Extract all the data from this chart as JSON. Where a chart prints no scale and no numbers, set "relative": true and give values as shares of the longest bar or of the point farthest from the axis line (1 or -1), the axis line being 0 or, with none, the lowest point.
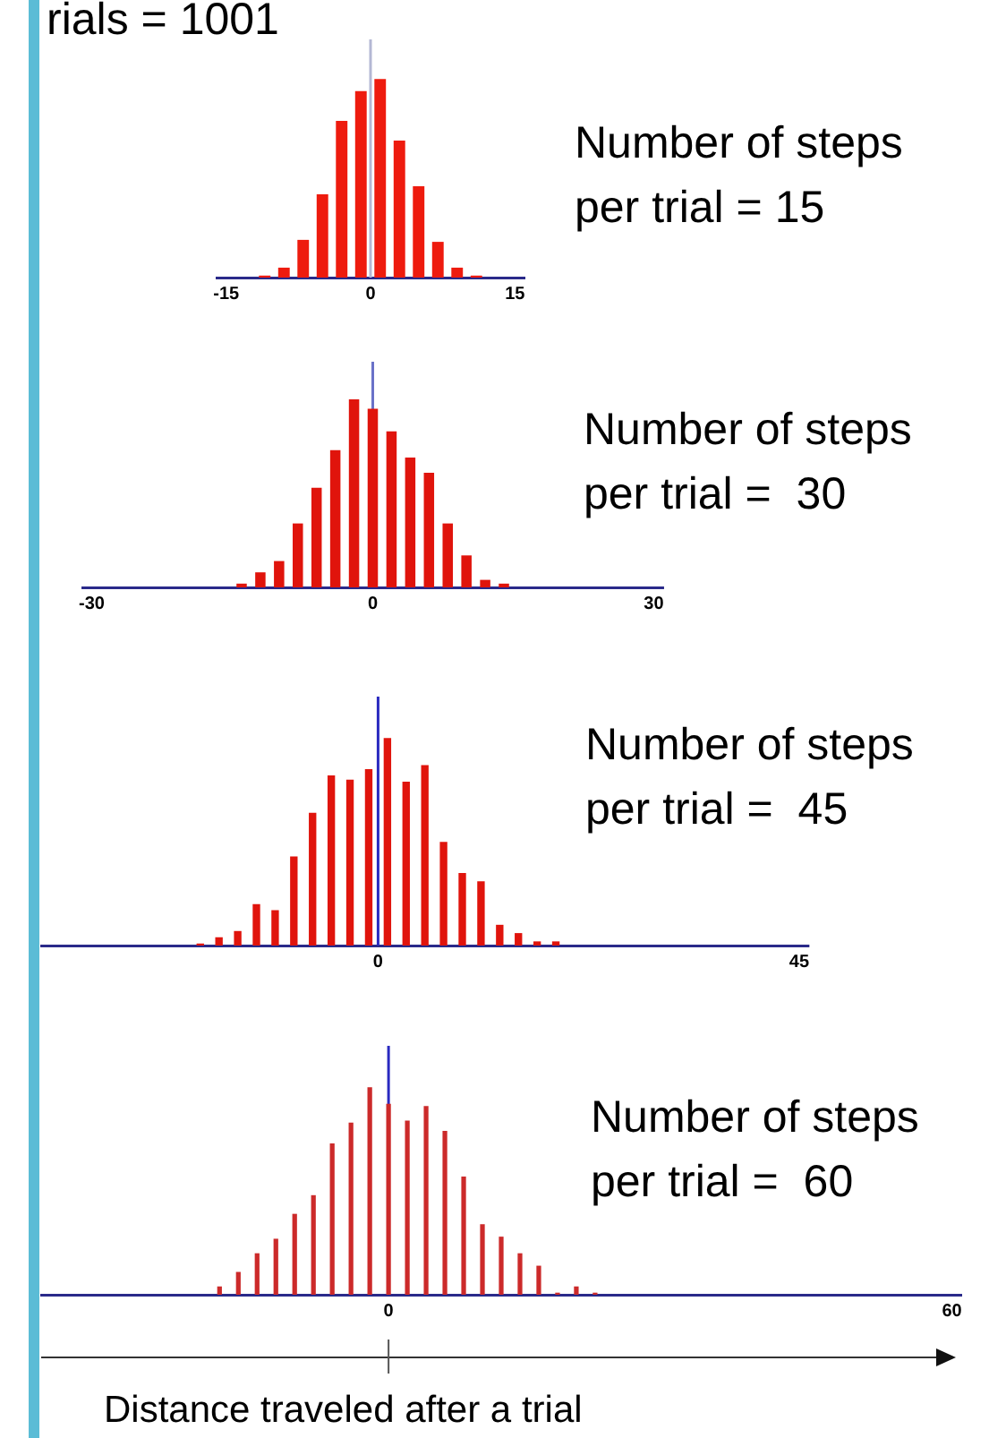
{
  "chart_data": [
    {
      "type": "bar",
      "title": "rials = 1001",
      "relative": true,
      "color": "#ee1b0e",
      "xlim": [
        -16,
        16
      ],
      "xticks": [
        -15,
        0,
        15
      ],
      "x": [
        -11,
        -9,
        -7,
        -5,
        -3,
        -1,
        1,
        3,
        5,
        7,
        9,
        11
      ],
      "values": [
        0.01,
        0.05,
        0.19,
        0.42,
        0.79,
        0.94,
        1,
        0.69,
        0.46,
        0.18,
        0.05,
        0.01
      ],
      "ref_lines": [
        {
          "axis": "x",
          "value": 0,
          "color": "#b4b8d4"
        }
      ],
      "annotations": [
        "Number of steps per trial = 15"
      ]
    },
    {
      "type": "bar",
      "relative": true,
      "color": "#e0140c",
      "xlim": [
        -31,
        31
      ],
      "xticks": [
        -30,
        0,
        30
      ],
      "x": [
        -14,
        -12,
        -10,
        -8,
        -6,
        -4,
        -2,
        0,
        2,
        4,
        6,
        8,
        10,
        12,
        14
      ],
      "values": [
        0.02,
        0.08,
        0.14,
        0.34,
        0.53,
        0.73,
        1,
        0.95,
        0.83,
        0.69,
        0.61,
        0.34,
        0.17,
        0.04,
        0.02
      ],
      "ref_lines": [
        {
          "axis": "x",
          "value": 0,
          "color": "#6a72c8"
        }
      ],
      "annotations": [
        "Number of steps per trial =  30"
      ]
    },
    {
      "type": "bar",
      "relative": true,
      "color": "#e0140c",
      "xlim": [
        -36,
        46
      ],
      "xticks": [
        0,
        45
      ],
      "x": [
        -19,
        -17,
        -15,
        -13,
        -11,
        -9,
        -7,
        -5,
        -3,
        -1,
        1,
        3,
        5,
        7,
        9,
        11,
        13,
        15,
        17,
        19
      ],
      "values": [
        0.01,
        0.04,
        0.07,
        0.2,
        0.17,
        0.43,
        0.64,
        0.82,
        0.8,
        0.85,
        1,
        0.79,
        0.87,
        0.5,
        0.35,
        0.31,
        0.1,
        0.06,
        0.02,
        0.02
      ],
      "ref_lines": [
        {
          "axis": "x",
          "value": 0,
          "color": "#2a2ac0"
        }
      ],
      "annotations": [
        "Number of steps per trial =  45"
      ]
    },
    {
      "type": "bar",
      "relative": true,
      "color": "#cc2a2a",
      "xlim": [
        -37,
        61
      ],
      "xticks": [
        0,
        60
      ],
      "x": [
        -18,
        -16,
        -14,
        -12,
        -10,
        -8,
        -6,
        -4,
        -2,
        0,
        2,
        4,
        6,
        8,
        10,
        12,
        14,
        16,
        18,
        20,
        22
      ],
      "values": [
        0.04,
        0.11,
        0.2,
        0.27,
        0.39,
        0.48,
        0.73,
        0.83,
        1,
        0.92,
        0.84,
        0.91,
        0.79,
        0.57,
        0.34,
        0.28,
        0.2,
        0.14,
        0.01,
        0.04,
        0.01
      ],
      "ref_lines": [
        {
          "axis": "x",
          "value": 0,
          "color": "#2a2ac0"
        }
      ],
      "annotations": [
        "Number of steps per trial =  60"
      ],
      "xlabel": "Distance traveled after a trial"
    }
  ]
}
